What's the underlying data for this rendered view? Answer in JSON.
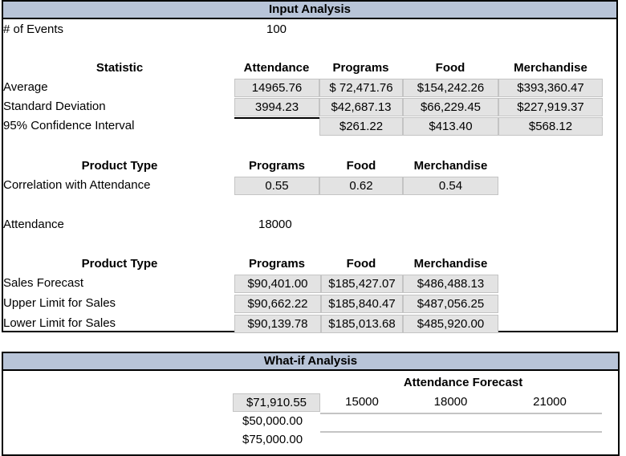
{
  "input_analysis": {
    "title": "Input Analysis",
    "events_label": "# of Events",
    "events_value": "100",
    "stats": {
      "header": "Statistic",
      "columns": [
        "Attendance",
        "Programs",
        "Food",
        "Merchandise"
      ],
      "rows": [
        {
          "label": "Average",
          "values": [
            "14965.76",
            "$ 72,471.76",
            "$154,242.26",
            "$393,360.47"
          ]
        },
        {
          "label": "Standard Deviation",
          "values": [
            "3994.23",
            "$42,687.13",
            "$66,229.45",
            "$227,919.37"
          ]
        },
        {
          "label": "95% Confidence Interval",
          "values": [
            "",
            "$261.22",
            "$413.40",
            "$568.12"
          ]
        }
      ]
    },
    "correlation": {
      "header": "Product Type",
      "columns": [
        "Programs",
        "Food",
        "Merchandise"
      ],
      "label": "Correlation with Attendance",
      "values": [
        "0.55",
        "0.62",
        "0.54"
      ]
    },
    "attendance_label": "Attendance",
    "attendance_value": "18000",
    "forecast": {
      "header": "Product Type",
      "columns": [
        "Programs",
        "Food",
        "Merchandise"
      ],
      "rows": [
        {
          "label": "Sales Forecast",
          "values": [
            "$90,401.00",
            "$185,427.07",
            "$486,488.13"
          ]
        },
        {
          "label": "Upper Limit for Sales",
          "values": [
            "$90,662.22",
            "$185,840.47",
            "$487,056.25"
          ]
        },
        {
          "label": "Lower Limit for Sales",
          "values": [
            "$90,139.78",
            "$185,013.68",
            "$485,920.00"
          ]
        }
      ]
    }
  },
  "what_if": {
    "title": "What-if Analysis",
    "attendance_forecast_label": "Attendance Forecast",
    "corner_value": "$71,910.55",
    "columns": [
      "15000",
      "18000",
      "21000"
    ],
    "rows": [
      "$50,000.00",
      "$75,000.00"
    ]
  }
}
